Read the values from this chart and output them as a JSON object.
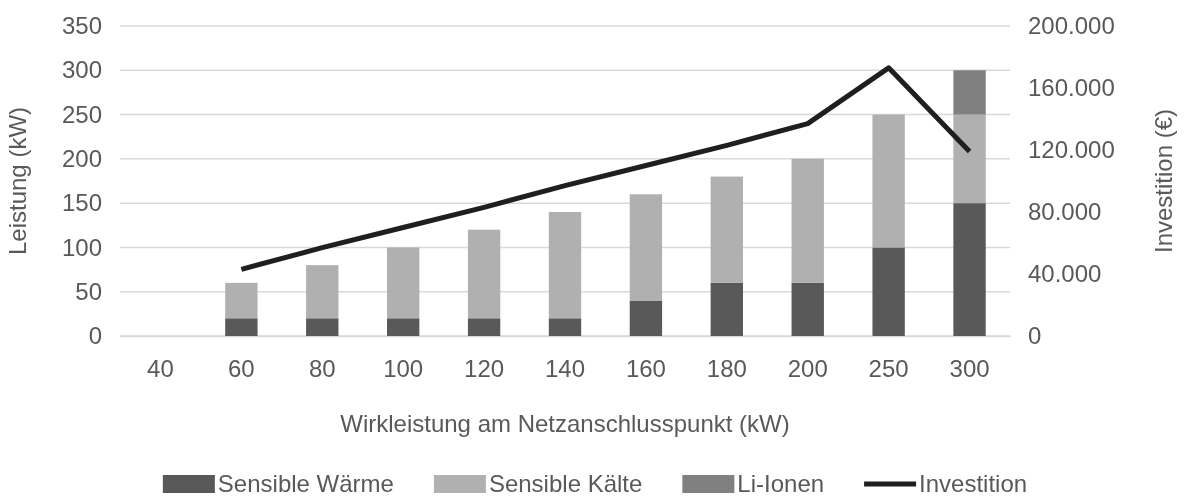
{
  "chart_data": {
    "type": "bar",
    "stacked": true,
    "xlabel": "Wirkleistung am Netzanschlusspunkt (kW)",
    "ylabel": "Leistung (kW)",
    "y2label": "Investition (€)",
    "categories": [
      "40",
      "60",
      "80",
      "100",
      "120",
      "140",
      "160",
      "180",
      "200",
      "250",
      "300"
    ],
    "series": [
      {
        "name": "Sensible Wärme",
        "color": "#595959",
        "values": [
          null,
          20,
          20,
          20,
          20,
          20,
          40,
          60,
          60,
          100,
          150
        ]
      },
      {
        "name": "Sensible Kälte",
        "color": "#b0b0b0",
        "values": [
          null,
          40,
          60,
          80,
          100,
          120,
          120,
          120,
          140,
          150,
          100
        ]
      },
      {
        "name": "Li-Ionen",
        "color": "#808080",
        "values": [
          null,
          null,
          null,
          null,
          null,
          null,
          null,
          null,
          null,
          null,
          50
        ]
      },
      {
        "name": "Investition",
        "type": "line",
        "axis": "y2",
        "color": "#1f1f1f",
        "values": [
          null,
          43000,
          57000,
          70000,
          83000,
          97000,
          110000,
          123000,
          137000,
          173000,
          119000
        ]
      }
    ],
    "ylim": [
      0,
      350
    ],
    "yticks": [
      0,
      50,
      100,
      150,
      200,
      250,
      300,
      350
    ],
    "y2lim": [
      0,
      200000
    ],
    "y2ticks": [
      {
        "value": 0,
        "label": "0"
      },
      {
        "value": 40000,
        "label": "40.000"
      },
      {
        "value": 80000,
        "label": "80.000"
      },
      {
        "value": 120000,
        "label": "120.000"
      },
      {
        "value": 160000,
        "label": "160.000"
      },
      {
        "value": 200000,
        "label": "200.000"
      }
    ],
    "grid": "y",
    "legend": "bottom",
    "marker": "none",
    "line_style": "solid"
  }
}
